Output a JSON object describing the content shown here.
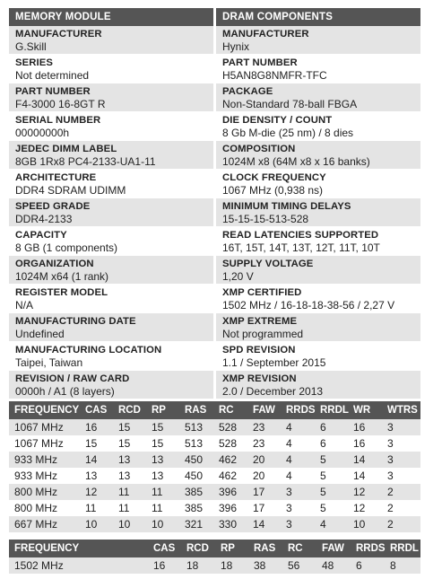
{
  "module": {
    "heading": "MEMORY MODULE",
    "rows": [
      {
        "label": "MANUFACTURER",
        "value": "G.Skill"
      },
      {
        "label": "SERIES",
        "value": "Not determined"
      },
      {
        "label": "PART NUMBER",
        "value": "F4-3000 16-8GT R"
      },
      {
        "label": "SERIAL NUMBER",
        "value": "00000000h"
      },
      {
        "label": "JEDEC DIMM LABEL",
        "value": "8GB 1Rx8 PC4-2133-UA1-11"
      },
      {
        "label": "ARCHITECTURE",
        "value": "DDR4 SDRAM UDIMM"
      },
      {
        "label": "SPEED GRADE",
        "value": "DDR4-2133"
      },
      {
        "label": "CAPACITY",
        "value": "8 GB (1 components)"
      },
      {
        "label": "ORGANIZATION",
        "value": "1024M x64 (1 rank)"
      },
      {
        "label": "REGISTER MODEL",
        "value": "N/A"
      },
      {
        "label": "MANUFACTURING DATE",
        "value": "Undefined"
      },
      {
        "label": "MANUFACTURING LOCATION",
        "value": "Taipei, Taiwan"
      },
      {
        "label": "REVISION / RAW CARD",
        "value": "0000h / A1 (8 layers)"
      }
    ]
  },
  "dram": {
    "heading": "DRAM COMPONENTS",
    "rows": [
      {
        "label": "MANUFACTURER",
        "value": "Hynix"
      },
      {
        "label": "PART NUMBER",
        "value": "H5AN8G8NMFR-TFC"
      },
      {
        "label": "PACKAGE",
        "value": "Non-Standard 78-ball FBGA"
      },
      {
        "label": "DIE DENSITY / COUNT",
        "value": "8 Gb M-die (25 nm) / 8 dies"
      },
      {
        "label": "COMPOSITION",
        "value": "1024M x8 (64M x8 x 16 banks)"
      },
      {
        "label": "CLOCK FREQUENCY",
        "value": "1067 MHz (0,938 ns)"
      },
      {
        "label": "MINIMUM TIMING DELAYS",
        "value": "15-15-15-513-528"
      },
      {
        "label": "READ LATENCIES SUPPORTED",
        "value": "16T, 15T, 14T, 13T, 12T, 11T, 10T"
      },
      {
        "label": "SUPPLY VOLTAGE",
        "value": "1,20 V"
      },
      {
        "label": "XMP CERTIFIED",
        "value": "1502 MHz / 16-18-18-38-56 / 2,27 V"
      },
      {
        "label": "XMP EXTREME",
        "value": "Not programmed"
      },
      {
        "label": "SPD REVISION",
        "value": "1.1 / September 2015"
      },
      {
        "label": "XMP REVISION",
        "value": "2.0 / December 2013"
      }
    ]
  },
  "timings": {
    "headers": [
      "FREQUENCY",
      "CAS",
      "RCD",
      "RP",
      "RAS",
      "RC",
      "FAW",
      "RRDS",
      "RRDL",
      "WR",
      "WTRS"
    ],
    "rows": [
      [
        "1067 MHz",
        "16",
        "15",
        "15",
        "513",
        "528",
        "23",
        "4",
        "6",
        "16",
        "3"
      ],
      [
        "1067 MHz",
        "15",
        "15",
        "15",
        "513",
        "528",
        "23",
        "4",
        "6",
        "16",
        "3"
      ],
      [
        "933 MHz",
        "14",
        "13",
        "13",
        "450",
        "462",
        "20",
        "4",
        "5",
        "14",
        "3"
      ],
      [
        "933 MHz",
        "13",
        "13",
        "13",
        "450",
        "462",
        "20",
        "4",
        "5",
        "14",
        "3"
      ],
      [
        "800 MHz",
        "12",
        "11",
        "11",
        "385",
        "396",
        "17",
        "3",
        "5",
        "12",
        "2"
      ],
      [
        "800 MHz",
        "11",
        "11",
        "11",
        "385",
        "396",
        "17",
        "3",
        "5",
        "12",
        "2"
      ],
      [
        "667 MHz",
        "10",
        "10",
        "10",
        "321",
        "330",
        "14",
        "3",
        "4",
        "10",
        "2"
      ]
    ]
  },
  "xmp": {
    "headers": [
      "FREQUENCY",
      "CAS",
      "RCD",
      "RP",
      "RAS",
      "RC",
      "FAW",
      "RRDS",
      "RRDL"
    ],
    "rows": [
      [
        "1502 MHz",
        "16",
        "18",
        "18",
        "38",
        "56",
        "48",
        "6",
        "8"
      ]
    ]
  }
}
